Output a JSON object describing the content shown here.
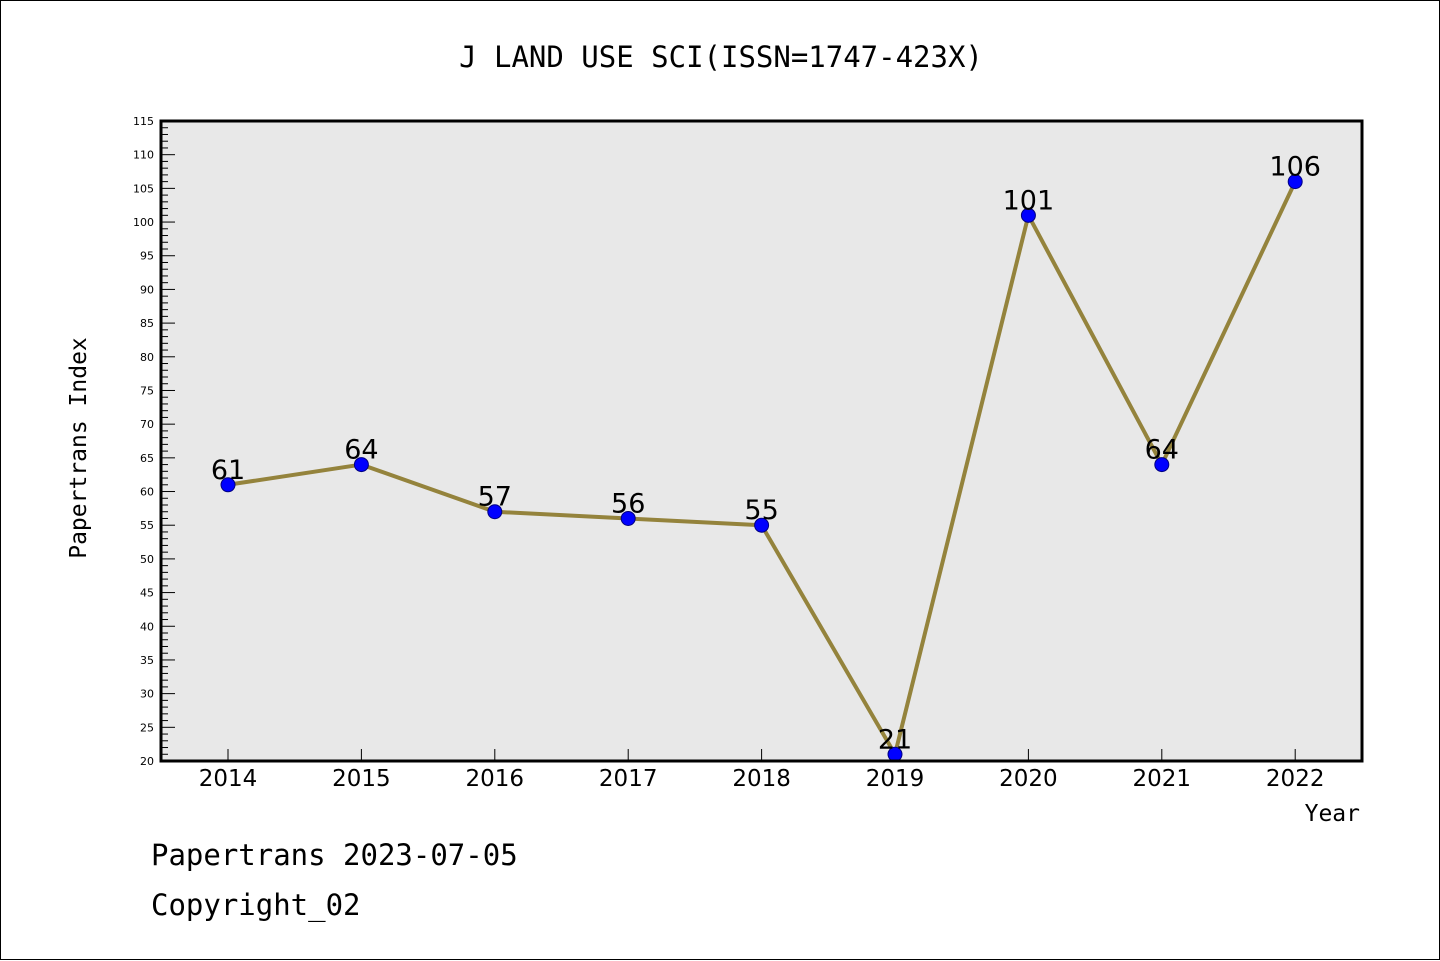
{
  "footer": {
    "line1": "Papertrans 2023-07-05",
    "line2": "Copyright_02"
  },
  "chart_data": {
    "type": "line",
    "title": "J LAND USE SCI(ISSN=1747-423X)",
    "xlabel": "Year",
    "ylabel": "Papertrans Index",
    "categories": [
      "2014",
      "2015",
      "2016",
      "2017",
      "2018",
      "2019",
      "2020",
      "2021",
      "2022"
    ],
    "series": [
      {
        "values": [
          61,
          64,
          57,
          56,
          55,
          21,
          101,
          64,
          106
        ],
        "data_labels": [
          "61",
          "64",
          "57",
          "56",
          "55",
          "21",
          "101",
          "64",
          "106"
        ]
      }
    ],
    "ylim": [
      20,
      115
    ],
    "y_major_ticks": [
      20,
      25,
      30,
      35,
      40,
      45,
      50,
      55,
      60,
      65,
      70,
      75,
      80,
      85,
      90,
      95,
      100,
      105,
      110,
      115
    ],
    "y_minor_step": 1,
    "grid": false,
    "legend": "none",
    "colors": {
      "plot_background": "#e8e8e8",
      "line": "#94833c",
      "marker_fill": "#0000ff",
      "marker_stroke": "#000080",
      "axis": "#000000"
    }
  }
}
